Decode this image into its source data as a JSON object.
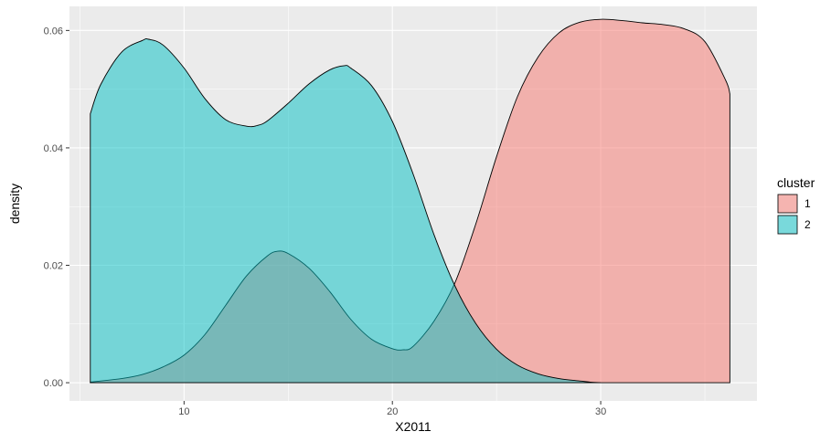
{
  "chart_data": {
    "type": "area",
    "title": "",
    "xlabel": "X2011",
    "ylabel": "density",
    "xlim": [
      4.5,
      37.5
    ],
    "ylim": [
      -0.0031,
      0.0641
    ],
    "x_ticks": [
      10,
      20,
      30
    ],
    "x_tick_labels": [
      "10",
      "20",
      "30"
    ],
    "y_ticks": [
      0.0,
      0.02,
      0.04,
      0.06
    ],
    "y_tick_labels": [
      "0.00",
      "0.02",
      "0.04",
      "0.06"
    ],
    "grid": true,
    "legend": {
      "title": "cluster",
      "position": "right"
    },
    "series": [
      {
        "name": "1",
        "color": "#F8766D",
        "x": [
          5.5,
          7,
          8,
          9,
          10,
          11,
          12,
          13,
          14,
          14.5,
          15,
          16,
          17,
          18,
          19,
          20,
          20.5,
          21,
          22,
          23,
          24,
          25,
          26,
          27,
          28,
          29,
          30,
          31,
          32,
          33,
          34,
          35,
          36,
          36.2
        ],
        "y": [
          0.0001,
          0.0007,
          0.0014,
          0.0027,
          0.0047,
          0.0082,
          0.0132,
          0.0182,
          0.0216,
          0.0224,
          0.022,
          0.0195,
          0.0155,
          0.0108,
          0.0074,
          0.0058,
          0.0056,
          0.0062,
          0.0105,
          0.017,
          0.027,
          0.0385,
          0.0487,
          0.0555,
          0.0596,
          0.0614,
          0.0619,
          0.0617,
          0.0613,
          0.061,
          0.0603,
          0.0581,
          0.0515,
          0.0492
        ]
      },
      {
        "name": "2",
        "color": "#00BFC4",
        "x": [
          5.5,
          6,
          7,
          8,
          8.3,
          9,
          10,
          11,
          12,
          13,
          13.5,
          14,
          15,
          16,
          17,
          17.7,
          18,
          19,
          20,
          21,
          22,
          23,
          24,
          25,
          26,
          27,
          28,
          29,
          29.5,
          30
        ],
        "y": [
          0.0458,
          0.0508,
          0.0563,
          0.0583,
          0.0585,
          0.0575,
          0.0536,
          0.0484,
          0.0448,
          0.0437,
          0.0438,
          0.0446,
          0.0476,
          0.0509,
          0.0533,
          0.054,
          0.0536,
          0.0506,
          0.0445,
          0.0355,
          0.0252,
          0.0165,
          0.0101,
          0.0057,
          0.003,
          0.0015,
          0.0007,
          0.0003,
          0.0001,
          0.0
        ]
      }
    ]
  }
}
